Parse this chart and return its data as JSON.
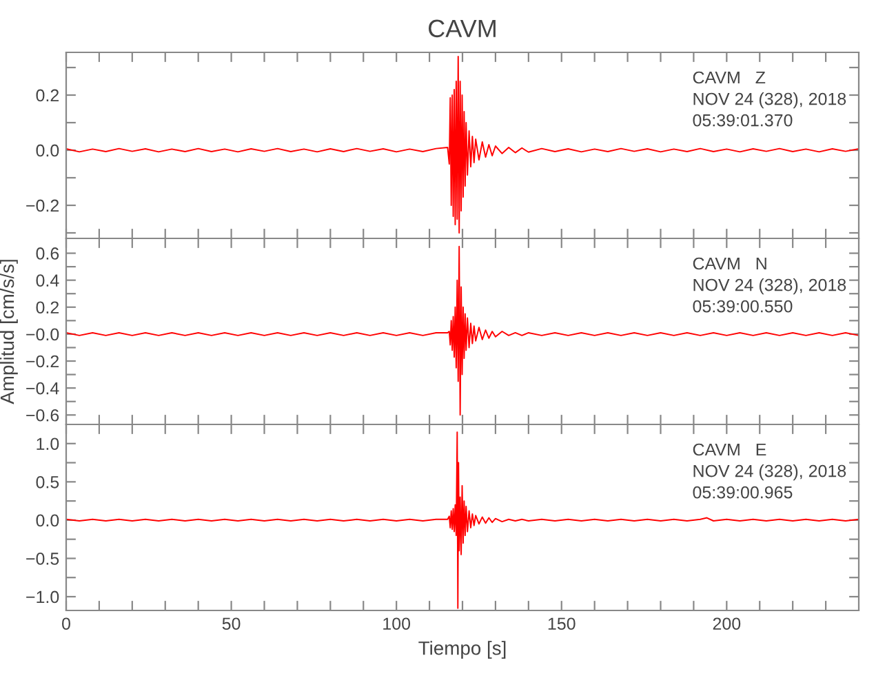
{
  "chart_data": [
    {
      "type": "line",
      "title": "CAVM",
      "annotations": [
        "CAVM   Z",
        "NOV 24 (328), 2018",
        "05:39:01.370"
      ],
      "tick_labels": "y",
      "grid": false,
      "marker": "none",
      "line_style": "solid",
      "xlim": [
        0,
        240
      ],
      "ylim": [
        -0.32,
        0.355
      ],
      "xticks": [
        0,
        {
          "value": 10,
          "label": null
        },
        {
          "value": 20,
          "label": null
        },
        {
          "value": 30,
          "label": null
        },
        {
          "value": 40,
          "label": null
        },
        50,
        {
          "value": 60,
          "label": null
        },
        {
          "value": 70,
          "label": null
        },
        {
          "value": 80,
          "label": null
        },
        {
          "value": 90,
          "label": null
        },
        100,
        {
          "value": 110,
          "label": null
        },
        {
          "value": 120,
          "label": null
        },
        {
          "value": 130,
          "label": null
        },
        {
          "value": 140,
          "label": null
        },
        150,
        {
          "value": 160,
          "label": null
        },
        {
          "value": 170,
          "label": null
        },
        {
          "value": 180,
          "label": null
        },
        {
          "value": 190,
          "label": null
        },
        200,
        {
          "value": 210,
          "label": null
        },
        {
          "value": 220,
          "label": null
        },
        {
          "value": 230,
          "label": null
        }
      ],
      "yticks": [
        {
          "value": -0.3,
          "label": null
        },
        {
          "value": -0.2,
          "label": "−0.2"
        },
        {
          "value": -0.1,
          "label": null
        },
        {
          "value": 0.0,
          "label": "0.0"
        },
        {
          "value": 0.1,
          "label": null
        },
        {
          "value": 0.2,
          "label": "0.2"
        },
        {
          "value": 0.3,
          "label": null
        }
      ],
      "x": [
        0,
        4,
        8,
        12,
        16,
        20,
        24,
        28,
        32,
        36,
        40,
        44,
        48,
        52,
        56,
        60,
        64,
        68,
        72,
        76,
        80,
        84,
        88,
        92,
        96,
        100,
        104,
        108,
        112,
        115.5,
        116,
        116.3,
        116.6,
        116.9,
        117.2,
        117.5,
        117.8,
        118.1,
        118.4,
        118.7,
        119.0,
        119.3,
        119.6,
        119.9,
        120.2,
        120.5,
        120.8,
        121.1,
        121.5,
        122,
        122.5,
        123,
        123.5,
        124,
        125,
        126,
        127,
        128,
        129,
        130,
        132,
        134,
        136,
        138,
        140,
        144,
        148,
        152,
        156,
        160,
        164,
        168,
        172,
        176,
        180,
        184,
        188,
        192,
        196,
        200,
        204,
        208,
        212,
        216,
        220,
        224,
        228,
        232,
        236,
        240
      ],
      "series": [
        {
          "color": "#ff0000",
          "values": [
            0.005,
            -0.006,
            0.004,
            -0.005,
            0.006,
            -0.004,
            0.005,
            -0.006,
            0.004,
            -0.005,
            0.006,
            -0.005,
            0.004,
            -0.006,
            0.005,
            -0.004,
            0.006,
            -0.005,
            0.004,
            -0.006,
            0.005,
            -0.005,
            0.006,
            -0.004,
            0.005,
            -0.006,
            0.004,
            -0.005,
            0.006,
            0.01,
            -0.05,
            0.19,
            -0.2,
            0.2,
            -0.24,
            0.22,
            -0.27,
            0.25,
            -0.25,
            0.34,
            -0.3,
            0.25,
            -0.22,
            0.2,
            -0.17,
            0.14,
            -0.13,
            0.1,
            -0.09,
            0.07,
            -0.06,
            0.05,
            -0.045,
            0.04,
            -0.035,
            0.03,
            -0.025,
            0.02,
            -0.02,
            0.015,
            -0.012,
            0.01,
            -0.009,
            0.008,
            -0.007,
            0.006,
            -0.005,
            0.005,
            -0.006,
            0.004,
            -0.005,
            0.006,
            -0.004,
            0.005,
            -0.006,
            0.004,
            -0.005,
            0.006,
            -0.005,
            0.004,
            -0.006,
            0.005,
            -0.004,
            0.006,
            -0.005,
            0.004,
            -0.006,
            0.005,
            -0.004,
            0.005
          ]
        }
      ]
    },
    {
      "type": "line",
      "ylabel": "Amplitud [cm/s/s]",
      "annotations": [
        "CAVM   N",
        "NOV 24 (328), 2018",
        "05:39:00.550"
      ],
      "tick_labels": "y",
      "grid": false,
      "marker": "none",
      "line_style": "solid",
      "xlim": [
        0,
        240
      ],
      "ylim": [
        -0.67,
        0.71
      ],
      "xticks": [
        0,
        {
          "value": 10,
          "label": null
        },
        {
          "value": 20,
          "label": null
        },
        {
          "value": 30,
          "label": null
        },
        {
          "value": 40,
          "label": null
        },
        50,
        {
          "value": 60,
          "label": null
        },
        {
          "value": 70,
          "label": null
        },
        {
          "value": 80,
          "label": null
        },
        {
          "value": 90,
          "label": null
        },
        100,
        {
          "value": 110,
          "label": null
        },
        {
          "value": 120,
          "label": null
        },
        {
          "value": 130,
          "label": null
        },
        {
          "value": 140,
          "label": null
        },
        150,
        {
          "value": 160,
          "label": null
        },
        {
          "value": 170,
          "label": null
        },
        {
          "value": 180,
          "label": null
        },
        {
          "value": 190,
          "label": null
        },
        200,
        {
          "value": 210,
          "label": null
        },
        {
          "value": 220,
          "label": null
        },
        {
          "value": 230,
          "label": null
        }
      ],
      "yticks": [
        {
          "value": -0.6,
          "label": "−0.6"
        },
        {
          "value": -0.5,
          "label": null
        },
        {
          "value": -0.4,
          "label": "−0.4"
        },
        {
          "value": -0.3,
          "label": null
        },
        {
          "value": -0.2,
          "label": "−0.2"
        },
        {
          "value": -0.1,
          "label": null
        },
        {
          "value": 0.0,
          "label": "−0.0"
        },
        {
          "value": 0.1,
          "label": null
        },
        {
          "value": 0.2,
          "label": "0.2"
        },
        {
          "value": 0.3,
          "label": null
        },
        {
          "value": 0.4,
          "label": "0.4"
        },
        {
          "value": 0.5,
          "label": null
        },
        {
          "value": 0.6,
          "label": "0.6"
        }
      ],
      "x": [
        0,
        4,
        8,
        12,
        16,
        20,
        24,
        28,
        32,
        36,
        40,
        44,
        48,
        52,
        56,
        60,
        64,
        68,
        72,
        76,
        80,
        84,
        88,
        92,
        96,
        100,
        104,
        108,
        112,
        115.5,
        116,
        116.3,
        116.6,
        116.9,
        117.2,
        117.5,
        117.8,
        118.1,
        118.4,
        118.7,
        119.0,
        119.3,
        119.6,
        119.9,
        120.2,
        120.5,
        120.8,
        121.1,
        121.5,
        122,
        122.5,
        123,
        123.5,
        124,
        125,
        126,
        127,
        128,
        129,
        130,
        132,
        134,
        136,
        138,
        140,
        144,
        148,
        152,
        156,
        160,
        164,
        168,
        172,
        176,
        180,
        184,
        188,
        192,
        196,
        200,
        204,
        208,
        212,
        216,
        220,
        224,
        228,
        232,
        236,
        240
      ],
      "series": [
        {
          "color": "#ff0000",
          "values": [
            0.01,
            -0.01,
            0.01,
            -0.01,
            0.01,
            -0.01,
            0.01,
            -0.01,
            0.01,
            -0.01,
            0.01,
            -0.01,
            0.01,
            -0.01,
            0.01,
            -0.01,
            0.01,
            -0.01,
            0.01,
            -0.01,
            0.01,
            -0.01,
            0.01,
            -0.01,
            0.01,
            -0.01,
            0.01,
            -0.01,
            0.01,
            0.01,
            0.02,
            -0.08,
            0.1,
            -0.12,
            0.13,
            -0.17,
            0.2,
            -0.25,
            0.4,
            -0.35,
            0.65,
            -0.6,
            0.35,
            -0.3,
            0.2,
            -0.18,
            0.15,
            -0.12,
            0.12,
            -0.1,
            0.08,
            -0.07,
            0.06,
            -0.05,
            0.05,
            -0.04,
            0.03,
            -0.03,
            0.02,
            -0.02,
            0.02,
            -0.01,
            0.01,
            -0.01,
            0.01,
            -0.01,
            0.01,
            -0.01,
            0.01,
            -0.01,
            0.01,
            -0.01,
            0.01,
            -0.01,
            0.01,
            -0.01,
            0.01,
            -0.01,
            0.01,
            -0.01,
            0.01,
            -0.01,
            0.01,
            -0.01,
            0.01,
            -0.01,
            0.01,
            -0.01,
            0.01,
            -0.01
          ]
        }
      ]
    },
    {
      "type": "line",
      "xlabel": "Tiempo [s]",
      "annotations": [
        "CAVM   E",
        "NOV 24 (328), 2018",
        "05:39:00.965"
      ],
      "grid": false,
      "marker": "none",
      "line_style": "solid",
      "xlim": [
        0,
        240
      ],
      "ylim": [
        -1.18,
        1.25
      ],
      "xticks": [
        0,
        {
          "value": 10,
          "label": null
        },
        {
          "value": 20,
          "label": null
        },
        {
          "value": 30,
          "label": null
        },
        {
          "value": 40,
          "label": null
        },
        50,
        {
          "value": 60,
          "label": null
        },
        {
          "value": 70,
          "label": null
        },
        {
          "value": 80,
          "label": null
        },
        {
          "value": 90,
          "label": null
        },
        100,
        {
          "value": 110,
          "label": null
        },
        {
          "value": 120,
          "label": null
        },
        {
          "value": 130,
          "label": null
        },
        {
          "value": 140,
          "label": null
        },
        150,
        {
          "value": 160,
          "label": null
        },
        {
          "value": 170,
          "label": null
        },
        {
          "value": 180,
          "label": null
        },
        {
          "value": 190,
          "label": null
        },
        200,
        {
          "value": 210,
          "label": null
        },
        {
          "value": 220,
          "label": null
        },
        {
          "value": 230,
          "label": null
        }
      ],
      "yticks": [
        {
          "value": -1.0,
          "label": "−1.0"
        },
        {
          "value": -0.75,
          "label": null
        },
        {
          "value": -0.5,
          "label": "−0.5"
        },
        {
          "value": -0.25,
          "label": null
        },
        {
          "value": 0.0,
          "label": "0.0"
        },
        {
          "value": 0.25,
          "label": null
        },
        {
          "value": 0.5,
          "label": "0.5"
        },
        {
          "value": 0.75,
          "label": null
        },
        {
          "value": 1.0,
          "label": "1.0"
        }
      ],
      "x": [
        0,
        4,
        8,
        12,
        16,
        20,
        24,
        28,
        32,
        36,
        40,
        44,
        48,
        52,
        56,
        60,
        64,
        68,
        72,
        76,
        80,
        84,
        88,
        92,
        96,
        100,
        104,
        108,
        112,
        115.5,
        116,
        116.3,
        116.6,
        116.9,
        117.2,
        117.5,
        117.8,
        118.1,
        118.4,
        118.6,
        118.8,
        119.0,
        119.3,
        119.6,
        119.9,
        120.2,
        120.5,
        120.8,
        121.1,
        121.5,
        122,
        122.5,
        123,
        123.5,
        124,
        125,
        126,
        127,
        128,
        129,
        130,
        132,
        134,
        136,
        138,
        140,
        144,
        148,
        152,
        156,
        160,
        164,
        168,
        172,
        176,
        180,
        184,
        188,
        192,
        194,
        196,
        200,
        204,
        208,
        212,
        216,
        220,
        224,
        228,
        232,
        236,
        240
      ],
      "series": [
        {
          "color": "#ff0000",
          "values": [
            0.01,
            -0.01,
            0.01,
            -0.01,
            0.01,
            -0.01,
            0.01,
            -0.01,
            0.01,
            -0.01,
            0.01,
            -0.01,
            0.01,
            -0.01,
            0.01,
            -0.01,
            0.01,
            -0.01,
            0.01,
            -0.01,
            0.01,
            -0.01,
            0.01,
            -0.01,
            0.01,
            -0.01,
            0.01,
            -0.01,
            0.01,
            0.01,
            0.05,
            -0.1,
            0.12,
            -0.12,
            0.15,
            -0.15,
            0.2,
            -0.2,
            1.15,
            -1.15,
            0.75,
            -0.4,
            0.3,
            -0.45,
            0.45,
            -0.3,
            0.25,
            -0.2,
            0.18,
            -0.15,
            0.12,
            -0.1,
            0.08,
            -0.07,
            0.06,
            -0.05,
            0.04,
            -0.04,
            0.03,
            -0.03,
            0.02,
            -0.02,
            0.01,
            -0.01,
            0.01,
            -0.01,
            0.01,
            -0.01,
            0.01,
            -0.01,
            0.01,
            -0.01,
            0.01,
            -0.01,
            0.01,
            -0.01,
            0.01,
            -0.01,
            0.01,
            0.03,
            -0.01,
            0.01,
            -0.01,
            0.01,
            -0.01,
            0.01,
            -0.01,
            0.01,
            -0.01,
            0.01,
            -0.01,
            0.01
          ]
        }
      ]
    }
  ]
}
